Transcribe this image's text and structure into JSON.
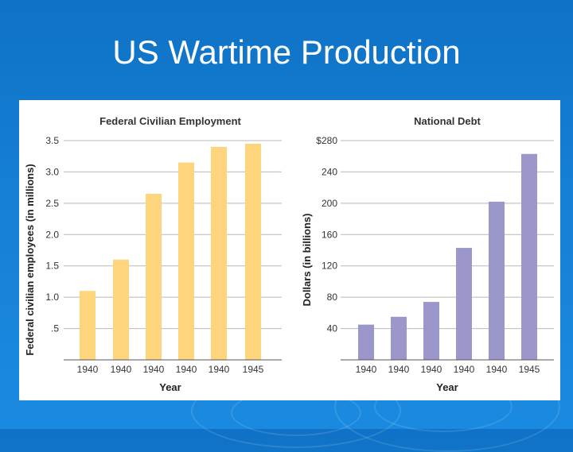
{
  "slide": {
    "title": "US Wartime Production"
  },
  "colors": {
    "employment_bar": "#fed57d",
    "debt_bar": "#9b97cb"
  },
  "chart_data": [
    {
      "type": "bar",
      "title": "Federal Civilian Employment",
      "xlabel": "Year",
      "ylabel": "Federal civilian employees (in millions)",
      "categories": [
        "1940",
        "1940",
        "1940",
        "1940",
        "1940",
        "1945"
      ],
      "values": [
        1.1,
        1.6,
        2.65,
        3.15,
        3.4,
        3.45
      ],
      "ylim": [
        0.0,
        3.5
      ],
      "yticks": [
        0.5,
        1.0,
        1.5,
        2.0,
        2.5,
        3.0,
        3.5
      ],
      "ytick_labels": [
        ".5",
        "1.0",
        "1.5",
        "2.0",
        "2.5",
        "3.0",
        "3.5"
      ],
      "grid": true
    },
    {
      "type": "bar",
      "title": "National Debt",
      "xlabel": "Year",
      "ylabel": "Dollars (in billions)",
      "categories": [
        "1940",
        "1940",
        "1940",
        "1940",
        "1940",
        "1945"
      ],
      "values": [
        45,
        55,
        74,
        143,
        202,
        263
      ],
      "ylim": [
        0,
        280
      ],
      "yticks": [
        40,
        80,
        120,
        160,
        200,
        240,
        280
      ],
      "ytick_labels": [
        "40",
        "80",
        "120",
        "160",
        "200",
        "240",
        "$280"
      ],
      "grid": true
    }
  ]
}
